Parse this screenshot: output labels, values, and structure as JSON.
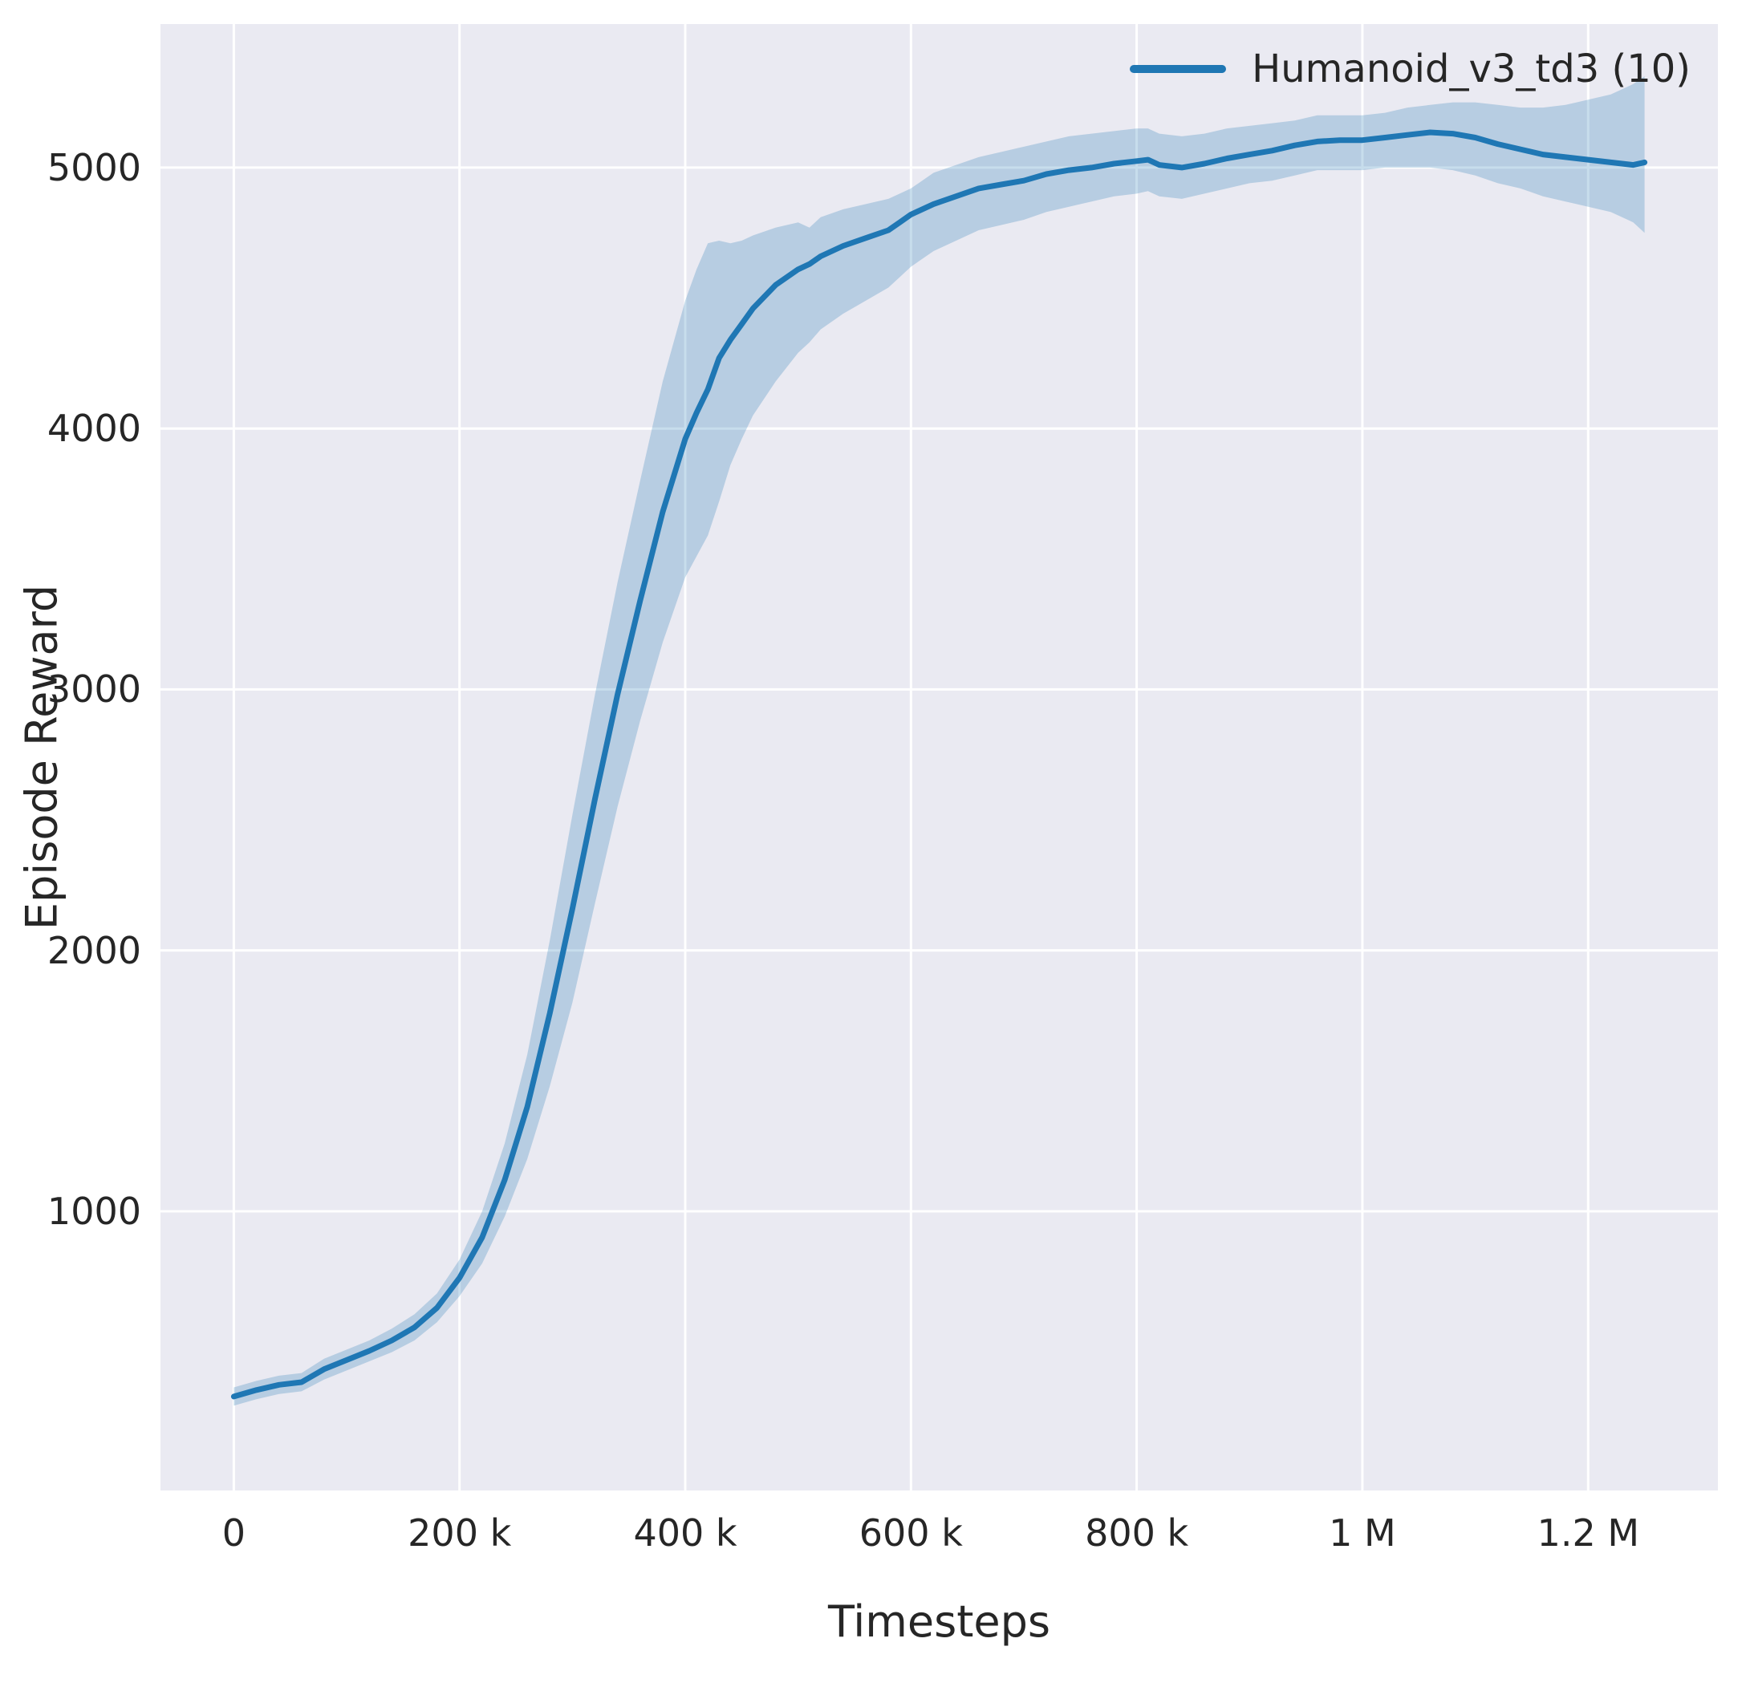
{
  "chart_data": {
    "type": "line",
    "title": "",
    "xlabel": "Timesteps",
    "ylabel": "Episode Reward",
    "xlim": [
      -65000,
      1315000
    ],
    "ylim": [
      -70,
      5550
    ],
    "grid": true,
    "legend_position": "upper right",
    "background": "#eaeaf2",
    "grid_color": "#ffffff",
    "text_color": "#262626",
    "x_ticks": [
      {
        "value": 0,
        "label": "0"
      },
      {
        "value": 200000,
        "label": "200 k"
      },
      {
        "value": 400000,
        "label": "400 k"
      },
      {
        "value": 600000,
        "label": "600 k"
      },
      {
        "value": 800000,
        "label": "800 k"
      },
      {
        "value": 1000000,
        "label": "1 M"
      },
      {
        "value": 1200000,
        "label": "1.2 M"
      }
    ],
    "y_ticks": [
      {
        "value": 1000,
        "label": "1000"
      },
      {
        "value": 2000,
        "label": "2000"
      },
      {
        "value": 3000,
        "label": "3000"
      },
      {
        "value": 4000,
        "label": "4000"
      },
      {
        "value": 5000,
        "label": "5000"
      }
    ],
    "series": [
      {
        "name": "Humanoid_v3_td3 (10)",
        "color": "#1f77b4",
        "band_opacity": 0.25,
        "line_width": 7,
        "x": [
          0,
          20000,
          40000,
          60000,
          80000,
          100000,
          120000,
          140000,
          160000,
          180000,
          200000,
          220000,
          240000,
          260000,
          280000,
          300000,
          320000,
          340000,
          360000,
          380000,
          400000,
          410000,
          420000,
          430000,
          440000,
          450000,
          460000,
          480000,
          500000,
          510000,
          520000,
          540000,
          560000,
          580000,
          590000,
          600000,
          620000,
          640000,
          660000,
          680000,
          700000,
          720000,
          740000,
          760000,
          780000,
          800000,
          810000,
          820000,
          840000,
          860000,
          880000,
          900000,
          920000,
          940000,
          960000,
          980000,
          1000000,
          1020000,
          1040000,
          1060000,
          1080000,
          1100000,
          1120000,
          1140000,
          1160000,
          1180000,
          1200000,
          1220000,
          1240000,
          1250000
        ],
        "mean": [
          290,
          315,
          335,
          345,
          395,
          430,
          465,
          505,
          555,
          630,
          745,
          900,
          1120,
          1400,
          1760,
          2160,
          2580,
          2980,
          3340,
          3680,
          3960,
          4060,
          4150,
          4270,
          4340,
          4400,
          4460,
          4550,
          4610,
          4630,
          4660,
          4700,
          4730,
          4760,
          4790,
          4820,
          4860,
          4890,
          4920,
          4935,
          4950,
          4975,
          4990,
          5000,
          5015,
          5025,
          5030,
          5010,
          5000,
          5015,
          5035,
          5050,
          5065,
          5085,
          5100,
          5105,
          5105,
          5115,
          5125,
          5135,
          5130,
          5115,
          5090,
          5070,
          5050,
          5040,
          5030,
          5020,
          5010,
          5020
        ],
        "lower": [
          255,
          280,
          300,
          310,
          355,
          390,
          425,
          460,
          505,
          575,
          675,
          800,
          980,
          1200,
          1480,
          1800,
          2180,
          2550,
          2880,
          3180,
          3430,
          3510,
          3590,
          3720,
          3860,
          3960,
          4050,
          4180,
          4290,
          4330,
          4380,
          4440,
          4490,
          4540,
          4580,
          4620,
          4680,
          4720,
          4760,
          4780,
          4800,
          4830,
          4850,
          4870,
          4890,
          4900,
          4910,
          4890,
          4880,
          4900,
          4920,
          4940,
          4950,
          4970,
          4990,
          4990,
          4990,
          5000,
          5000,
          5000,
          4990,
          4970,
          4940,
          4920,
          4890,
          4870,
          4850,
          4830,
          4790,
          4750
        ],
        "upper": [
          325,
          350,
          370,
          380,
          435,
          470,
          505,
          550,
          605,
          685,
          815,
          1000,
          1260,
          1600,
          2040,
          2520,
          2980,
          3410,
          3800,
          4180,
          4490,
          4610,
          4710,
          4720,
          4710,
          4720,
          4740,
          4770,
          4790,
          4770,
          4810,
          4840,
          4860,
          4880,
          4900,
          4920,
          4980,
          5010,
          5040,
          5060,
          5080,
          5100,
          5120,
          5130,
          5140,
          5150,
          5150,
          5130,
          5120,
          5130,
          5150,
          5160,
          5170,
          5180,
          5200,
          5200,
          5200,
          5210,
          5230,
          5240,
          5250,
          5250,
          5240,
          5230,
          5230,
          5240,
          5260,
          5280,
          5320,
          5350
        ]
      }
    ]
  }
}
